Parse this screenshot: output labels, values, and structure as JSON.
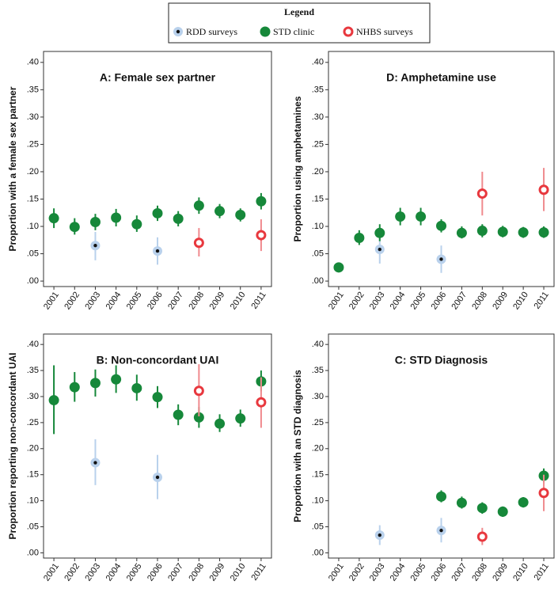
{
  "legend": {
    "title": "Legend",
    "entries": [
      {
        "name": "RDD surveys",
        "color": "#b9d1ec",
        "marker": "dot"
      },
      {
        "name": "STD clinic",
        "color": "#16883a",
        "marker": "filled"
      },
      {
        "name": "NHBS surveys",
        "color": "#e8383e",
        "marker": "ring"
      }
    ]
  },
  "chart_data": [
    {
      "type": "errorpoint",
      "title": "A:  Female sex partner",
      "y_label": "Proportion with a female sex partner",
      "categories": [
        "2001",
        "2002",
        "2003",
        "2004",
        "2005",
        "2006",
        "2007",
        "2008",
        "2009",
        "2010",
        "2011"
      ],
      "ylim": [
        -0.01,
        0.42
      ],
      "yticks": [
        {
          "value": 0,
          "label": ".00"
        },
        {
          "value": 0.05,
          "label": ".05"
        },
        {
          "value": 0.1,
          "label": ".10"
        },
        {
          "value": 0.15,
          "label": ".15"
        },
        {
          "value": 0.2,
          "label": ".20"
        },
        {
          "value": 0.25,
          "label": ".25"
        },
        {
          "value": 0.3,
          "label": ".30"
        },
        {
          "value": 0.35,
          "label": ".35"
        },
        {
          "value": 0.4,
          "label": ".40"
        }
      ],
      "series": [
        {
          "values": [
            null,
            null,
            0.065,
            null,
            null,
            0.055,
            null,
            null,
            null,
            null,
            null
          ],
          "lower": [
            null,
            null,
            0.038,
            null,
            null,
            0.03,
            null,
            null,
            null,
            null,
            null
          ],
          "upper": [
            null,
            null,
            0.09,
            null,
            null,
            0.08,
            null,
            null,
            null,
            null,
            null
          ]
        },
        {
          "values": [
            0.115,
            0.099,
            0.108,
            0.116,
            0.104,
            0.124,
            0.114,
            0.138,
            0.128,
            0.121,
            0.146
          ],
          "lower": [
            0.097,
            0.085,
            0.093,
            0.1,
            0.09,
            0.11,
            0.1,
            0.123,
            0.115,
            0.109,
            0.131
          ],
          "upper": [
            0.133,
            0.115,
            0.123,
            0.132,
            0.12,
            0.138,
            0.128,
            0.153,
            0.141,
            0.133,
            0.161
          ]
        },
        {
          "values": [
            null,
            null,
            null,
            null,
            null,
            null,
            null,
            0.07,
            null,
            null,
            0.084
          ],
          "lower": [
            null,
            null,
            null,
            null,
            null,
            null,
            null,
            0.045,
            null,
            null,
            0.055
          ],
          "upper": [
            null,
            null,
            null,
            null,
            null,
            null,
            null,
            0.097,
            null,
            null,
            0.113
          ]
        }
      ]
    },
    {
      "type": "errorpoint",
      "title": "D:  Amphetamine use",
      "y_label": "Proportion using amphetamines",
      "categories": [
        "2001",
        "2002",
        "2003",
        "2004",
        "2005",
        "2006",
        "2007",
        "2008",
        "2009",
        "2010",
        "2011"
      ],
      "ylim": [
        -0.01,
        0.42
      ],
      "yticks": [
        {
          "value": 0,
          "label": ".00"
        },
        {
          "value": 0.05,
          "label": ".05"
        },
        {
          "value": 0.1,
          "label": ".10"
        },
        {
          "value": 0.15,
          "label": ".15"
        },
        {
          "value": 0.2,
          "label": ".20"
        },
        {
          "value": 0.25,
          "label": ".25"
        },
        {
          "value": 0.3,
          "label": ".30"
        },
        {
          "value": 0.35,
          "label": ".35"
        },
        {
          "value": 0.4,
          "label": ".40"
        }
      ],
      "series": [
        {
          "values": [
            null,
            null,
            0.058,
            null,
            null,
            0.04,
            null,
            null,
            null,
            null,
            null
          ],
          "lower": [
            null,
            null,
            0.032,
            null,
            null,
            0.015,
            null,
            null,
            null,
            null,
            null
          ],
          "upper": [
            null,
            null,
            0.085,
            null,
            null,
            0.065,
            null,
            null,
            null,
            null,
            null
          ]
        },
        {
          "values": [
            0.025,
            0.079,
            0.088,
            0.118,
            0.118,
            0.101,
            0.088,
            0.092,
            0.09,
            0.089,
            0.089
          ],
          "lower": [
            0.018,
            0.066,
            0.073,
            0.102,
            0.102,
            0.089,
            0.078,
            0.08,
            0.08,
            0.079,
            0.079
          ],
          "upper": [
            0.032,
            0.093,
            0.104,
            0.134,
            0.134,
            0.113,
            0.1,
            0.104,
            0.101,
            0.099,
            0.1
          ]
        },
        {
          "values": [
            null,
            null,
            null,
            null,
            null,
            null,
            null,
            0.16,
            null,
            null,
            0.167
          ],
          "lower": [
            null,
            null,
            null,
            null,
            null,
            null,
            null,
            0.12,
            null,
            null,
            0.128
          ],
          "upper": [
            null,
            null,
            null,
            null,
            null,
            null,
            null,
            0.2,
            null,
            null,
            0.207
          ]
        }
      ]
    },
    {
      "type": "errorpoint",
      "title": "B:  Non-concordant UAI",
      "y_label": "Proportion reporting non-concordant UAI",
      "categories": [
        "2001",
        "2002",
        "2003",
        "2004",
        "2005",
        "2006",
        "2007",
        "2008",
        "2009",
        "2010",
        "2011"
      ],
      "ylim": [
        -0.01,
        0.42
      ],
      "yticks": [
        {
          "value": 0,
          "label": ".00"
        },
        {
          "value": 0.05,
          "label": ".05"
        },
        {
          "value": 0.1,
          "label": ".10"
        },
        {
          "value": 0.15,
          "label": ".15"
        },
        {
          "value": 0.2,
          "label": ".20"
        },
        {
          "value": 0.25,
          "label": ".25"
        },
        {
          "value": 0.3,
          "label": ".30"
        },
        {
          "value": 0.35,
          "label": ".35"
        },
        {
          "value": 0.4,
          "label": ".40"
        }
      ],
      "series": [
        {
          "values": [
            null,
            null,
            0.173,
            null,
            null,
            0.145,
            null,
            null,
            null,
            null,
            null
          ],
          "lower": [
            null,
            null,
            0.13,
            null,
            null,
            0.103,
            null,
            null,
            null,
            null,
            null
          ],
          "upper": [
            null,
            null,
            0.218,
            null,
            null,
            0.188,
            null,
            null,
            null,
            null,
            null
          ]
        },
        {
          "values": [
            0.293,
            0.318,
            0.326,
            0.333,
            0.316,
            0.299,
            0.265,
            0.26,
            0.248,
            0.258,
            0.329
          ],
          "lower": [
            0.228,
            0.29,
            0.3,
            0.307,
            0.292,
            0.278,
            0.245,
            0.24,
            0.232,
            0.242,
            0.31
          ],
          "upper": [
            0.36,
            0.347,
            0.352,
            0.36,
            0.342,
            0.32,
            0.285,
            0.28,
            0.266,
            0.275,
            0.35
          ]
        },
        {
          "values": [
            null,
            null,
            null,
            null,
            null,
            null,
            null,
            0.311,
            null,
            null,
            0.289
          ],
          "lower": [
            null,
            null,
            null,
            null,
            null,
            null,
            null,
            0.262,
            null,
            null,
            0.24
          ],
          "upper": [
            null,
            null,
            null,
            null,
            null,
            null,
            null,
            0.362,
            null,
            null,
            0.337
          ]
        }
      ]
    },
    {
      "type": "errorpoint",
      "title": "C:  STD Diagnosis",
      "y_label": "Proportion with an STD diagnosis",
      "categories": [
        "2001",
        "2002",
        "2003",
        "2004",
        "2005",
        "2006",
        "2007",
        "2008",
        "2009",
        "2010",
        "2011"
      ],
      "ylim": [
        -0.01,
        0.42
      ],
      "yticks": [
        {
          "value": 0,
          "label": ".00"
        },
        {
          "value": 0.05,
          "label": ".05"
        },
        {
          "value": 0.1,
          "label": ".10"
        },
        {
          "value": 0.15,
          "label": ".15"
        },
        {
          "value": 0.2,
          "label": ".20"
        },
        {
          "value": 0.25,
          "label": ".25"
        },
        {
          "value": 0.3,
          "label": ".30"
        },
        {
          "value": 0.35,
          "label": ".35"
        },
        {
          "value": 0.4,
          "label": ".40"
        }
      ],
      "series": [
        {
          "values": [
            null,
            null,
            0.034,
            null,
            null,
            0.043,
            null,
            null,
            null,
            null,
            null
          ],
          "lower": [
            null,
            null,
            0.015,
            null,
            null,
            0.02,
            null,
            null,
            null,
            null,
            null
          ],
          "upper": [
            null,
            null,
            0.053,
            null,
            null,
            0.067,
            null,
            null,
            null,
            null,
            null
          ]
        },
        {
          "values": [
            null,
            null,
            null,
            null,
            null,
            0.108,
            0.096,
            0.086,
            0.079,
            0.097,
            0.148
          ],
          "lower": [
            null,
            null,
            null,
            null,
            null,
            0.097,
            0.085,
            0.075,
            0.069,
            0.087,
            0.135
          ],
          "upper": [
            null,
            null,
            null,
            null,
            null,
            0.12,
            0.108,
            0.097,
            0.089,
            0.107,
            0.162
          ]
        },
        {
          "values": [
            null,
            null,
            null,
            null,
            null,
            null,
            null,
            0.031,
            null,
            null,
            0.115
          ],
          "lower": [
            null,
            null,
            null,
            null,
            null,
            null,
            null,
            0.015,
            null,
            null,
            0.08
          ],
          "upper": [
            null,
            null,
            null,
            null,
            null,
            null,
            null,
            0.048,
            null,
            null,
            0.15
          ]
        }
      ]
    }
  ]
}
